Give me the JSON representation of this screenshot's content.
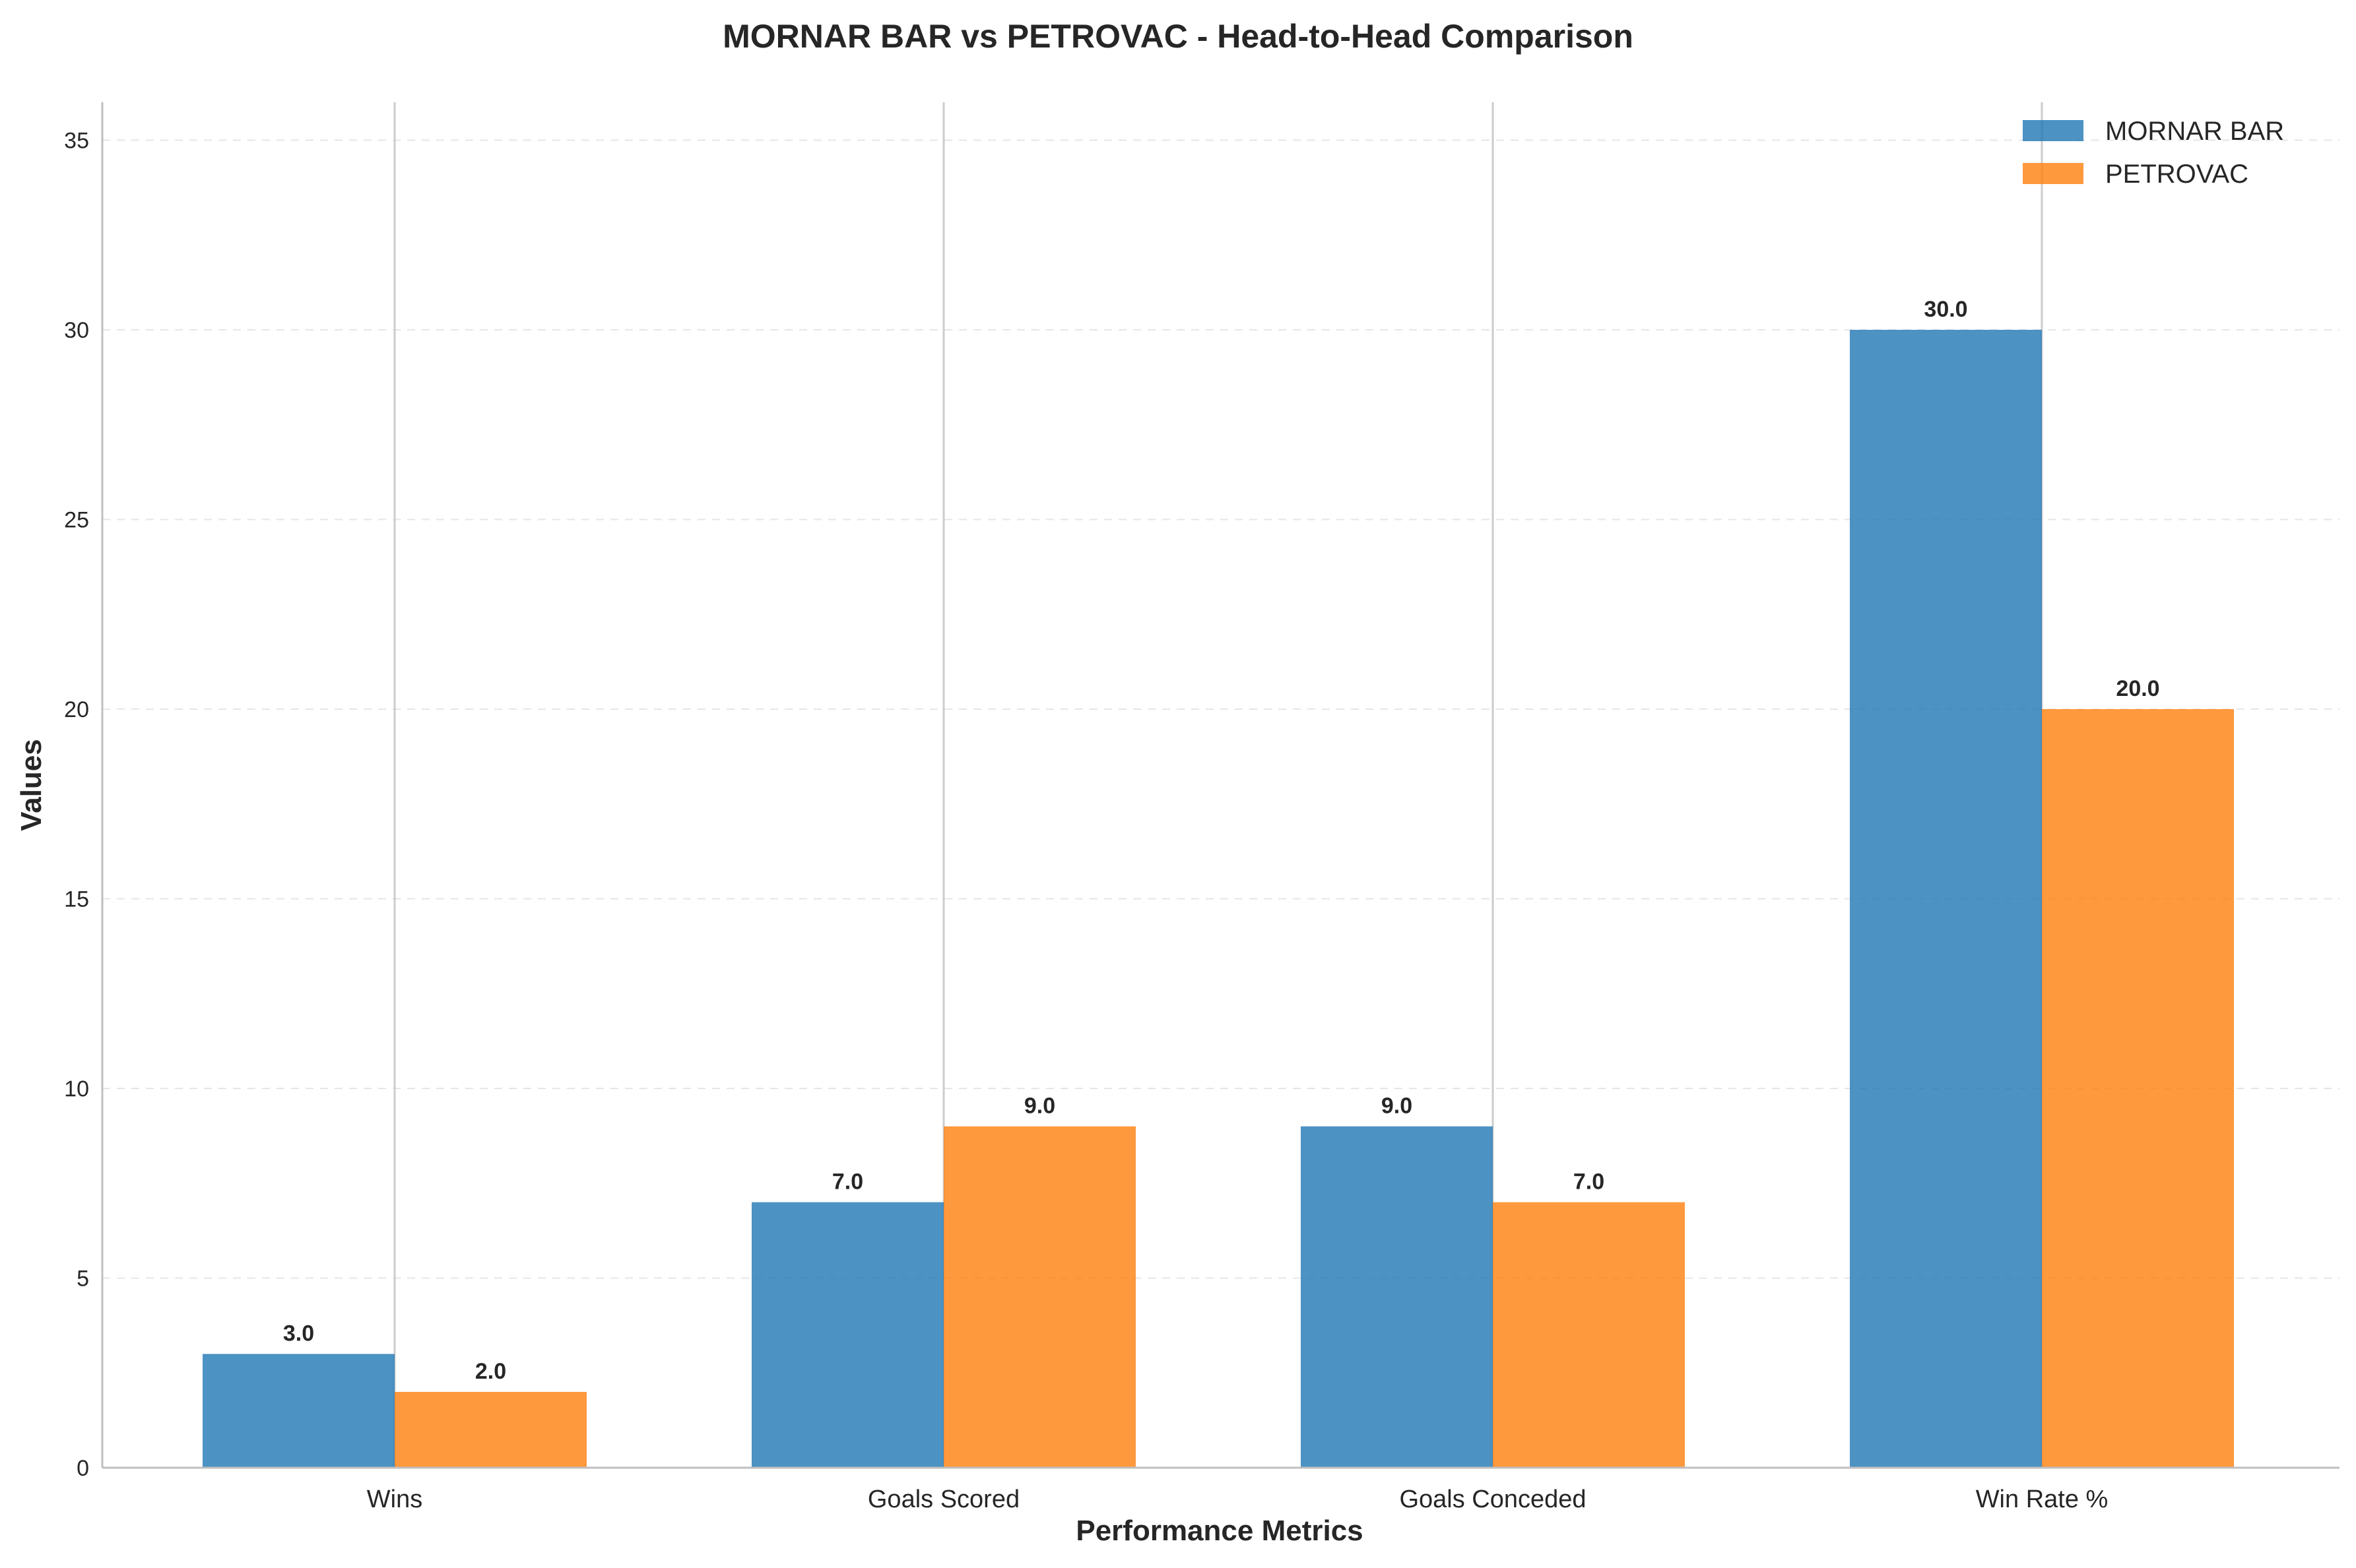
{
  "chart_data": {
    "type": "bar",
    "title": "MORNAR BAR vs PETROVAC - Head-to-Head Comparison",
    "xlabel": "Performance Metrics",
    "ylabel": "Values",
    "categories": [
      "Wins",
      "Goals Scored",
      "Goals Conceded",
      "Win Rate %"
    ],
    "series": [
      {
        "name": "MORNAR BAR",
        "color": "#1f77b4",
        "values": [
          3.0,
          7.0,
          9.0,
          30.0
        ]
      },
      {
        "name": "PETROVAC",
        "color": "#ff7f0e",
        "values": [
          2.0,
          9.0,
          7.0,
          20.0
        ]
      }
    ],
    "ylim": [
      0,
      36
    ],
    "yticks": [
      0,
      5,
      10,
      15,
      20,
      25,
      30,
      35
    ],
    "grid": "y-dashed",
    "legend_position": "top-right",
    "value_label_format": "one-decimal"
  }
}
